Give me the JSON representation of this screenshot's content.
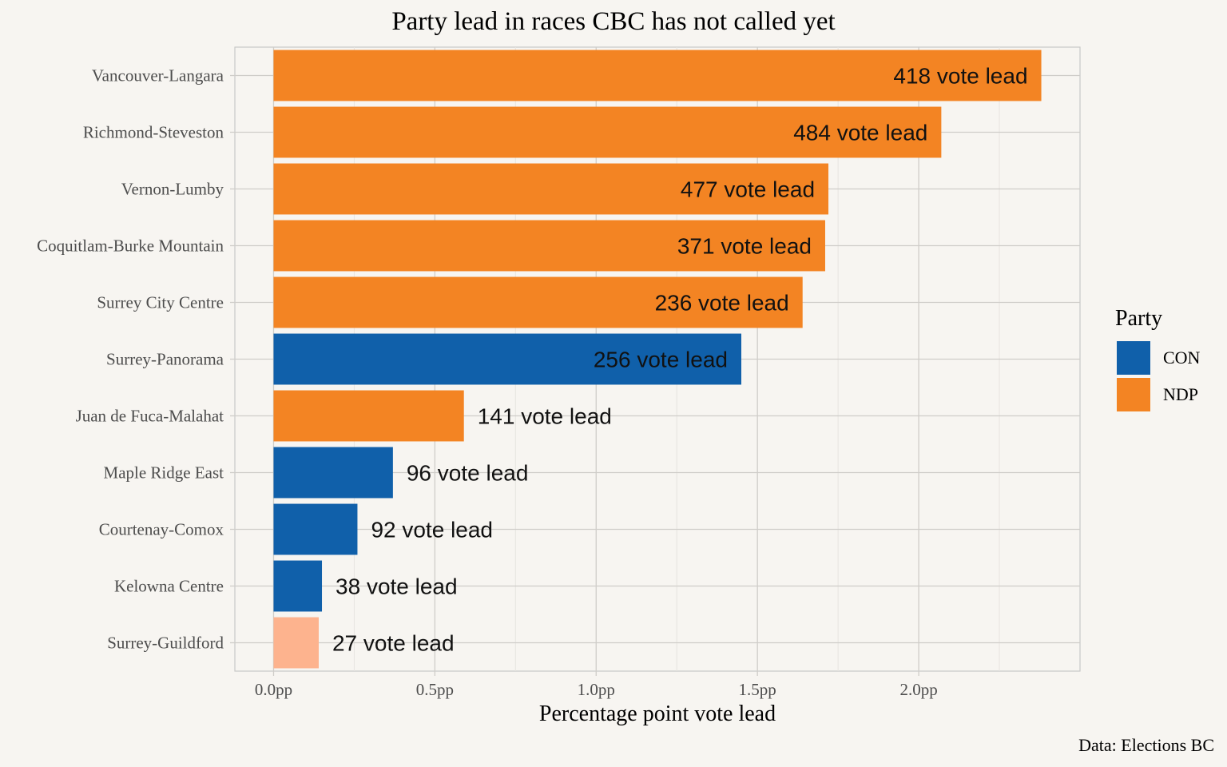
{
  "chart_data": {
    "type": "bar",
    "orientation": "horizontal",
    "title": "Party lead in races CBC has not called yet",
    "xlabel": "Percentage point vote lead",
    "ylabel": "",
    "caption": "Data: Elections BC",
    "xlim": [
      -0.12,
      2.5
    ],
    "x_ticks": [
      {
        "value": 0.0,
        "label": "0.0pp"
      },
      {
        "value": 0.5,
        "label": "0.5pp"
      },
      {
        "value": 1.0,
        "label": "1.0pp"
      },
      {
        "value": 1.5,
        "label": "1.5pp"
      },
      {
        "value": 2.0,
        "label": "2.0pp"
      }
    ],
    "grid": true,
    "legend": {
      "title": "Party",
      "position": "right",
      "entries": [
        {
          "name": "CON",
          "color": "#1060aa"
        },
        {
          "name": "NDP",
          "color": "#f38423"
        }
      ]
    },
    "bars": [
      {
        "category": "Vancouver-Langara",
        "value": 2.38,
        "party": "NDP",
        "color": "#f38423",
        "label": "418 vote lead"
      },
      {
        "category": "Richmond-Steveston",
        "value": 2.07,
        "party": "NDP",
        "color": "#f38423",
        "label": "484 vote lead"
      },
      {
        "category": "Vernon-Lumby",
        "value": 1.72,
        "party": "NDP",
        "color": "#f38423",
        "label": "477 vote lead"
      },
      {
        "category": "Coquitlam-Burke Mountain",
        "value": 1.71,
        "party": "NDP",
        "color": "#f38423",
        "label": "371 vote lead"
      },
      {
        "category": "Surrey City Centre",
        "value": 1.64,
        "party": "NDP",
        "color": "#f38423",
        "label": "236 vote lead"
      },
      {
        "category": "Surrey-Panorama",
        "value": 1.45,
        "party": "CON",
        "color": "#1060aa",
        "label": "256 vote lead"
      },
      {
        "category": "Juan de Fuca-Malahat",
        "value": 0.59,
        "party": "NDP",
        "color": "#f38423",
        "label": "141 vote lead"
      },
      {
        "category": "Maple Ridge East",
        "value": 0.37,
        "party": "CON",
        "color": "#1060aa",
        "label": "96 vote lead"
      },
      {
        "category": "Courtenay-Comox",
        "value": 0.26,
        "party": "CON",
        "color": "#1060aa",
        "label": "92 vote lead"
      },
      {
        "category": "Kelowna Centre",
        "value": 0.15,
        "party": "CON",
        "color": "#1060aa",
        "label": "38 vote lead"
      },
      {
        "category": "Surrey-Guildford",
        "value": 0.14,
        "party": "NDP",
        "color": "#fdb38e",
        "label": "27 vote lead"
      }
    ]
  }
}
